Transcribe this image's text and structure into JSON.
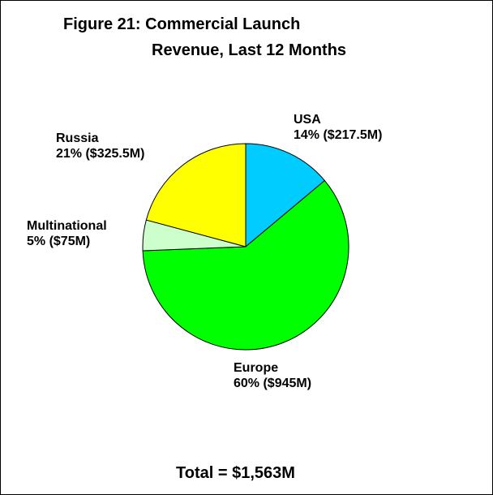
{
  "title_line1": "Figure 21: Commercial Launch",
  "title_line2": "Revenue, Last 12 Months",
  "total_label": "Total = $1,563M",
  "chart_data": {
    "type": "pie",
    "title": "Figure 21: Commercial Launch Revenue, Last 12 Months",
    "unit": "$M",
    "total": 1563,
    "slices": [
      {
        "name": "USA",
        "percent_label": "14% ($217.5M)",
        "value": 217.5,
        "percent": 14,
        "color": "#00ccff"
      },
      {
        "name": "Europe",
        "percent_label": "60% ($945M)",
        "value": 945,
        "percent": 60,
        "color": "#00ff00"
      },
      {
        "name": "Multinational",
        "percent_label": "5% ($75M)",
        "value": 75,
        "percent": 5,
        "color": "#ccffcc"
      },
      {
        "name": "Russia",
        "percent_label": "21% ($325.5M)",
        "value": 325.5,
        "percent": 21,
        "color": "#ffff00"
      }
    ],
    "start_angle": "12 o'clock",
    "direction": "clockwise",
    "legend": "none"
  }
}
